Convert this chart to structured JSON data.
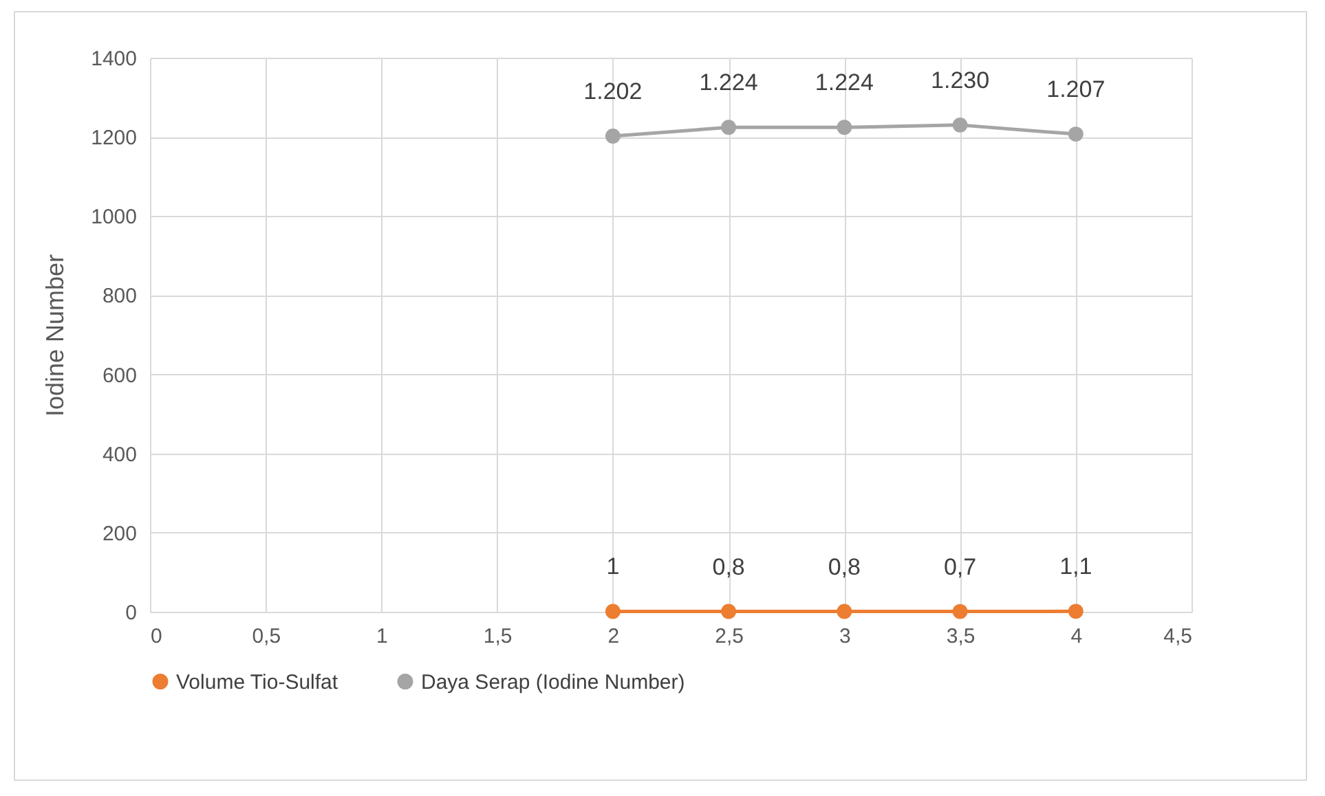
{
  "chart_data": {
    "type": "line",
    "ylabel": "Iodine Number",
    "x": [
      2,
      2.5,
      3,
      3.5,
      4
    ],
    "xlim": [
      0,
      4.5
    ],
    "xticks": [
      0,
      {
        "value": 0.5,
        "label": "0,5"
      },
      1,
      {
        "value": 1.5,
        "label": "1,5"
      },
      2,
      {
        "value": 2.5,
        "label": "2,5"
      },
      3,
      {
        "value": 3.5,
        "label": "3,5"
      },
      4,
      {
        "value": 4.5,
        "label": "4,5"
      }
    ],
    "ylim": [
      0,
      1400
    ],
    "yticks": [
      0,
      200,
      400,
      600,
      800,
      1000,
      1200,
      1400
    ],
    "series": [
      {
        "name": "Volume Tio-Sulfat",
        "color": "#ed7d31",
        "values": [
          1,
          0.8,
          0.8,
          0.7,
          1.1
        ],
        "value_labels": [
          "1",
          "0,8",
          "0,8",
          "0,7",
          "1,1"
        ]
      },
      {
        "name": "Daya Serap    (Iodine Number)",
        "color": "#a5a5a5",
        "values": [
          1202,
          1224,
          1224,
          1230,
          1207
        ],
        "value_labels": [
          "1.202",
          "1.224",
          "1.224",
          "1.230",
          "1.207"
        ]
      }
    ],
    "grid": true,
    "legend": "bottom",
    "marker": "circle"
  }
}
